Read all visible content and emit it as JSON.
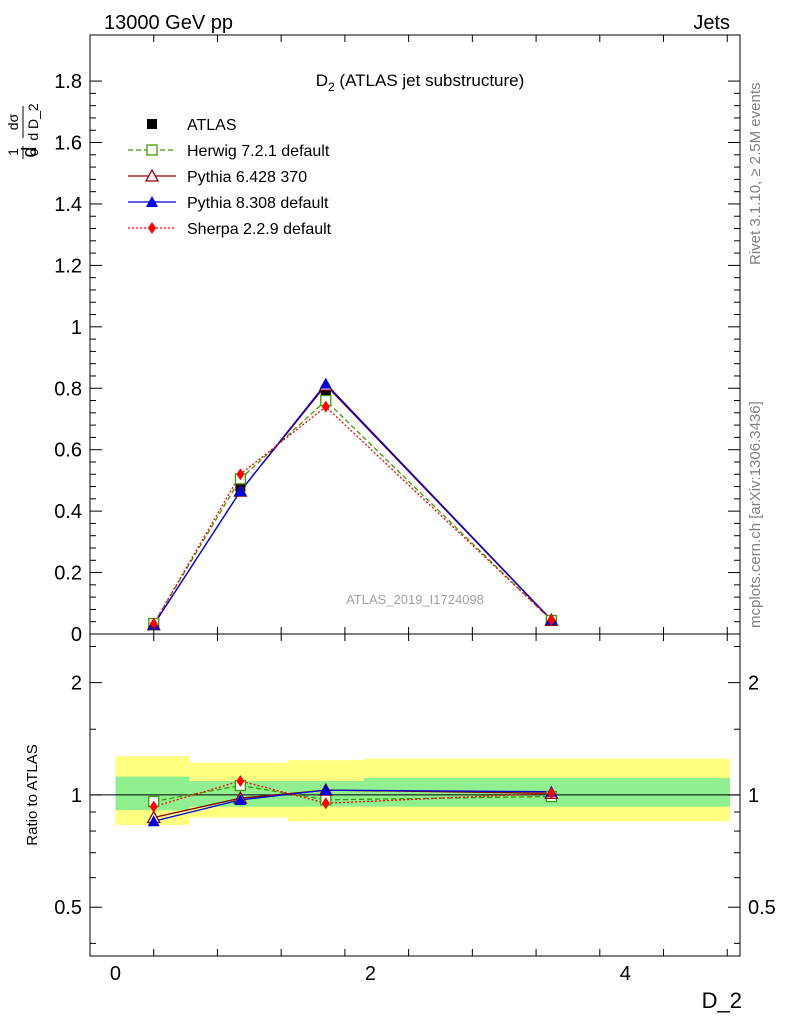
{
  "header": {
    "left": "13000 GeV pp",
    "right": "Jets"
  },
  "side_labels": {
    "rivet": "Rivet 3.1.10, ≥ 2.5M events",
    "mcplots": "mcplots.cern.ch [arXiv:1306.3436]"
  },
  "chart_data": [
    {
      "type": "line",
      "title": "D",
      "title_sub": "2",
      "title_rest": " (ATLAS jet substructure)",
      "ylabel": "1/σ dσ/d D_2",
      "watermark": "ATLAS_2019_I1724098",
      "xlim": [
        -0.2,
        4.9
      ],
      "ylim": [
        0,
        1.95
      ],
      "yticks": [
        0,
        0.2,
        0.4,
        0.6,
        0.8,
        1,
        1.2,
        1.4,
        1.6,
        1.8
      ],
      "ytick_labels": [
        "0",
        "0.2",
        "0.4",
        "0.6",
        "0.8",
        "1",
        "1.2",
        "1.4",
        "1.6",
        "1.8"
      ],
      "x": [
        0.3,
        0.98,
        1.65,
        3.42
      ],
      "legend_position": "top-left",
      "series": [
        {
          "name": "ATLAS",
          "values": [
            0.035,
            0.48,
            0.79,
            0.045
          ],
          "color": "#000000",
          "marker": "square-filled"
        },
        {
          "name": "Herwig 7.2.1 default",
          "values": [
            0.034,
            0.505,
            0.76,
            0.044
          ],
          "color": "#3f9a00",
          "marker": "square-open",
          "dash": "5,3"
        },
        {
          "name": "Pythia 6.428 370",
          "values": [
            0.03,
            0.465,
            0.81,
            0.045
          ],
          "color": "#8b0000",
          "marker": "triangle-open"
        },
        {
          "name": "Pythia 8.308 default",
          "values": [
            0.03,
            0.465,
            0.815,
            0.046
          ],
          "color": "#0000dd",
          "marker": "triangle-filled"
        },
        {
          "name": "Sherpa 2.2.9 default",
          "values": [
            0.033,
            0.52,
            0.74,
            0.046
          ],
          "color": "#ff0000",
          "marker": "diamond-filled",
          "dash": "2,2"
        }
      ]
    },
    {
      "type": "line",
      "ylabel": "Ratio to ATLAS",
      "xlabel": "D_2",
      "scale": "log",
      "xlim": [
        -0.2,
        4.9
      ],
      "ylim": [
        0.37,
        2.7
      ],
      "yticks": [
        0.5,
        1,
        2
      ],
      "ytick_labels": [
        "0.5",
        "1",
        "2"
      ],
      "xticks": [
        0,
        2,
        4
      ],
      "xtick_labels": [
        "0",
        "2",
        "4"
      ],
      "x": [
        0.3,
        0.98,
        1.65,
        3.42
      ],
      "bands": {
        "edges": [
          0.0,
          0.58,
          1.35,
          1.95,
          4.9
        ],
        "stat_low": [
          0.91,
          0.93,
          0.93,
          0.93
        ],
        "stat_high": [
          1.12,
          1.09,
          1.09,
          1.11
        ],
        "total_low": [
          0.83,
          0.87,
          0.85,
          0.85
        ],
        "total_high": [
          1.27,
          1.22,
          1.24,
          1.25
        ]
      },
      "series": [
        {
          "name": "Herwig 7.2.1 default",
          "values": [
            0.96,
            1.06,
            0.97,
            0.99
          ],
          "color": "#3f9a00",
          "marker": "square-open",
          "dash": "5,3"
        },
        {
          "name": "Pythia 6.428 370",
          "values": [
            0.87,
            0.98,
            1.03,
            1.01
          ],
          "color": "#8b0000",
          "marker": "triangle-open"
        },
        {
          "name": "Pythia 8.308 default",
          "values": [
            0.85,
            0.97,
            1.03,
            1.02
          ],
          "color": "#0000dd",
          "marker": "triangle-filled"
        },
        {
          "name": "Sherpa 2.2.9 default",
          "values": [
            0.93,
            1.09,
            0.95,
            1.01
          ],
          "color": "#ff0000",
          "marker": "diamond-filled",
          "dash": "2,2"
        }
      ]
    }
  ]
}
